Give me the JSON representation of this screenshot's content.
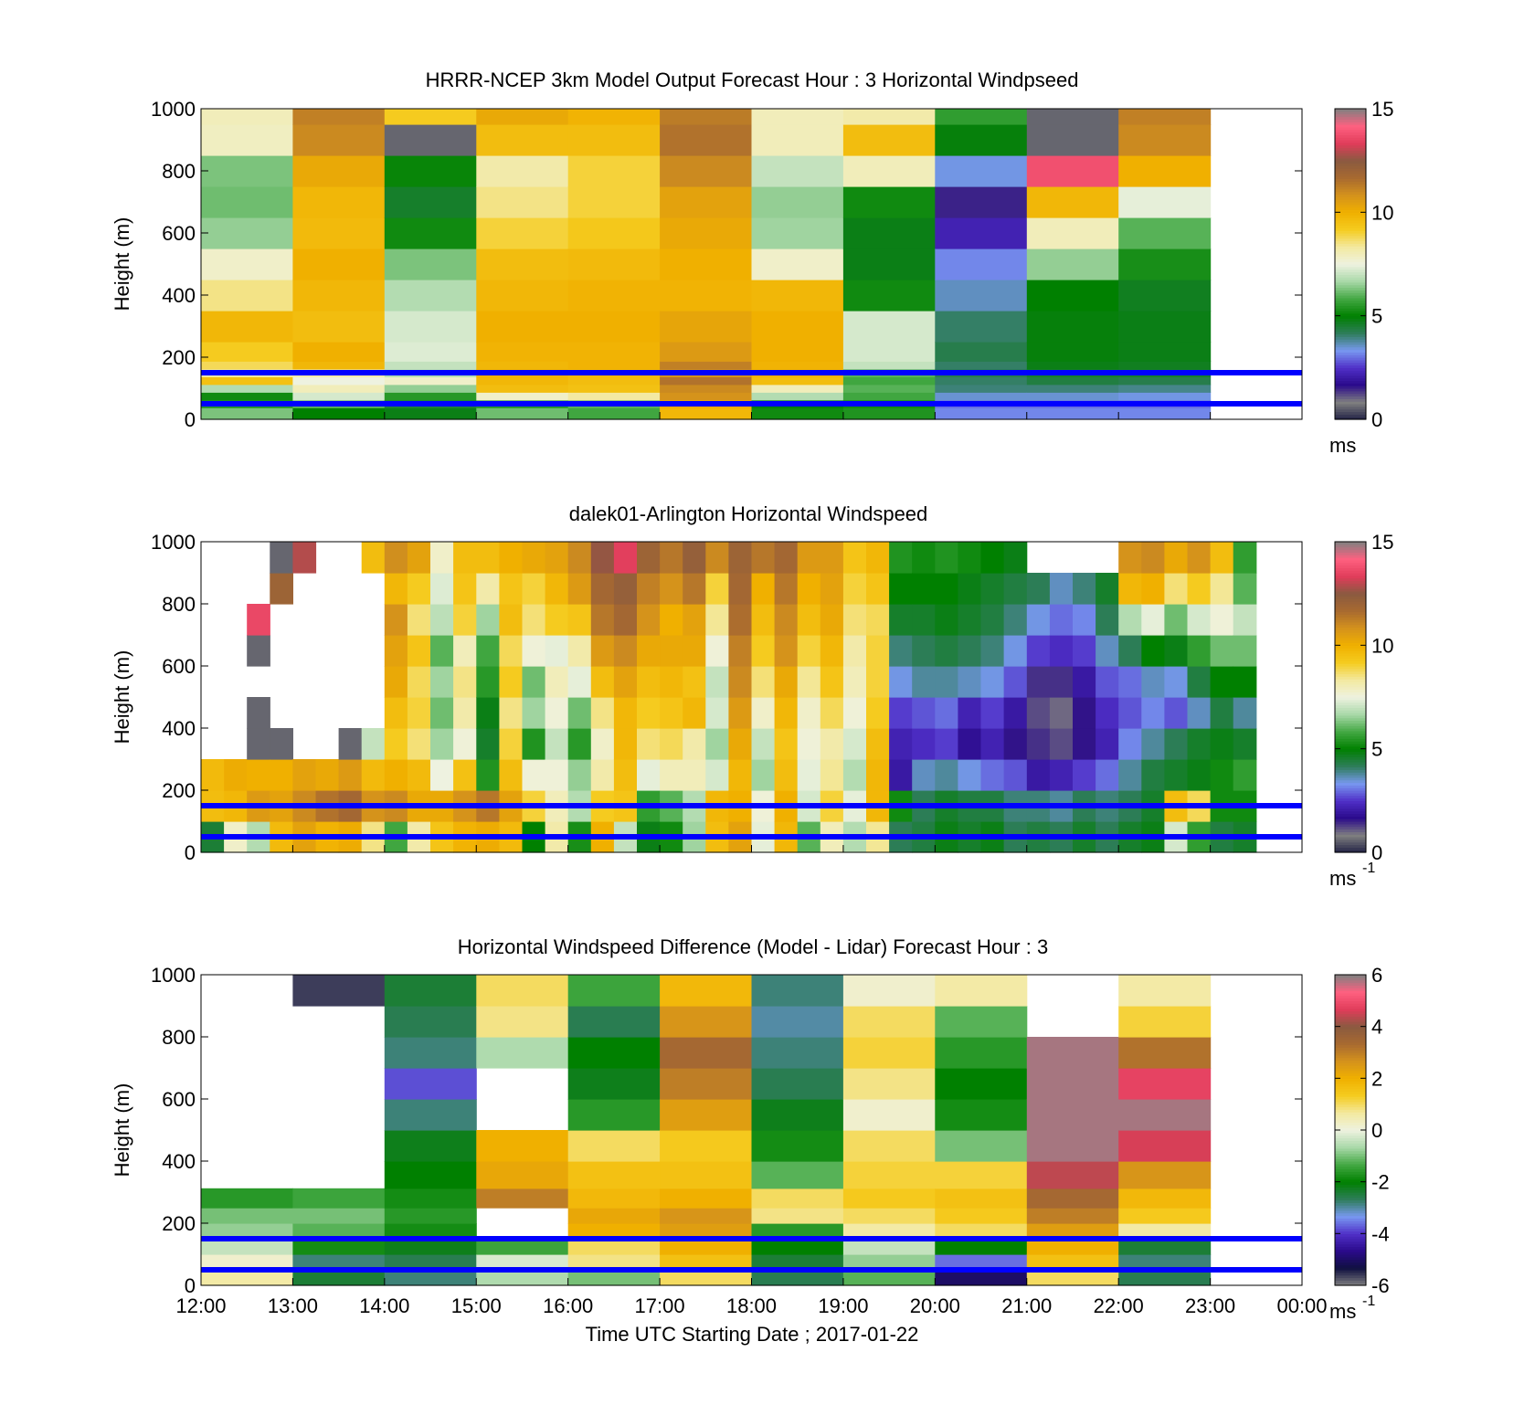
{
  "colors": {
    "ws_scale": [
      "#222244",
      "#808080",
      "#2a0a8a",
      "#5030c8",
      "#7898f0",
      "#2e7d5a",
      "#008000",
      "#43a843",
      "#a8d8a8",
      "#eef2e0",
      "#f3e9a0",
      "#f5cc20",
      "#f0b000",
      "#d4921c",
      "#a86a30",
      "#8a5a40",
      "#e03c5a",
      "#ff6080",
      "#808080"
    ],
    "diff_scale": [
      "#808080",
      "#101040",
      "#2a0a8a",
      "#5030c8",
      "#7898f0",
      "#2e7d5a",
      "#008000",
      "#43a843",
      "#a8d8a8",
      "#eef2e0",
      "#f3e9a0",
      "#f5cc20",
      "#f0b000",
      "#d4921c",
      "#a86a30",
      "#8a5a40",
      "#e03c5a",
      "#ff6080",
      "#808080"
    ],
    "marker_line": "#0000ff"
  },
  "chart_data": [
    {
      "type": "heatmap",
      "title": "HRRR-NCEP 3km Model Output   Forecast Hour : 3 Horizontal Windpseed",
      "ylabel": "Height (m)",
      "ylim": [
        0,
        1000
      ],
      "yticks": [
        "0",
        "200",
        "400",
        "600",
        "800",
        "1000"
      ],
      "xlim_hours": [
        12,
        24
      ],
      "colorbar": {
        "range": [
          0,
          15
        ],
        "ticks": [
          "0",
          "5",
          "10",
          "15"
        ],
        "unit": "ms",
        "exponent": ""
      },
      "reference_heights_m": [
        150,
        50
      ],
      "times_hour": [
        12,
        13,
        14,
        15,
        16,
        17,
        18,
        19,
        20,
        21,
        22
      ],
      "heights_m": [
        25,
        50,
        75,
        100,
        125,
        150,
        175,
        200,
        300,
        400,
        500,
        600,
        700,
        800,
        900,
        1000
      ],
      "values": [
        [
          6.3,
          5.5,
          5.2,
          6.8,
          9.5,
          8.2,
          8.8,
          9.2,
          9.8,
          8.5,
          7.8,
          6.5,
          6.2,
          6.3,
          7.9,
          8.0
        ],
        [
          5.0,
          6.0,
          7.2,
          8.0,
          7.5,
          8.2,
          9.8,
          10.0,
          9.6,
          9.8,
          10.0,
          9.7,
          9.8,
          10.2,
          11.0,
          11.2
        ],
        [
          4.8,
          4.5,
          5.5,
          6.5,
          7.8,
          6.8,
          7.0,
          7.3,
          7.2,
          6.8,
          6.3,
          5.2,
          4.6,
          5.1,
          0.6,
          9.2
        ],
        [
          6.2,
          5.5,
          7.8,
          9.6,
          9.8,
          10.0,
          9.8,
          9.9,
          10.0,
          9.8,
          9.6,
          9.0,
          8.5,
          8.2,
          9.6,
          10.2
        ],
        [
          5.8,
          6.0,
          8.3,
          9.5,
          9.6,
          9.8,
          9.9,
          9.9,
          10.0,
          9.9,
          9.7,
          9.3,
          9.0,
          9.0,
          9.6,
          9.9
        ],
        [
          9.8,
          10.2,
          10.8,
          11.0,
          11.5,
          10.8,
          11.2,
          10.6,
          10.3,
          9.9,
          10.0,
          10.2,
          10.4,
          11.0,
          11.5,
          11.3
        ],
        [
          5.2,
          5.0,
          6.8,
          8.0,
          9.6,
          10.0,
          9.9,
          10.0,
          10.0,
          9.8,
          7.8,
          6.6,
          6.5,
          7.0,
          8.0,
          8.0
        ],
        [
          5.4,
          5.2,
          5.8,
          6.0,
          5.8,
          6.0,
          7.0,
          7.2,
          7.2,
          5.2,
          4.8,
          4.8,
          5.2,
          8.0,
          9.6,
          8.2
        ],
        [
          3.2,
          3.0,
          3.5,
          4.0,
          4.1,
          4.3,
          4.1,
          4.3,
          4.1,
          3.6,
          3.2,
          2.2,
          1.5,
          3.4,
          4.9,
          5.6
        ],
        [
          3.2,
          3.0,
          3.5,
          4.0,
          4.4,
          4.6,
          4.8,
          4.9,
          4.9,
          5.0,
          6.5,
          8.0,
          9.8,
          13.8,
          0.6,
          0.6
        ],
        [
          3.2,
          3.0,
          3.4,
          3.9,
          4.3,
          4.6,
          4.7,
          4.8,
          4.8,
          4.7,
          5.3,
          6.0,
          7.4,
          10.0,
          11.0,
          11.2
        ]
      ]
    },
    {
      "type": "heatmap",
      "title": "dalek01-Arlington  Horizontal Windspeed",
      "ylabel": "Height (m)",
      "ylim": [
        0,
        1000
      ],
      "yticks": [
        "0",
        "200",
        "400",
        "600",
        "800",
        "1000"
      ],
      "xlim_hours": [
        12,
        24
      ],
      "colorbar": {
        "range": [
          0,
          15
        ],
        "ticks": [
          "0",
          "5",
          "10",
          "15"
        ],
        "unit": "ms",
        "exponent": "-1"
      },
      "reference_heights_m": [
        150,
        50
      ],
      "times_hour": [
        12.0,
        12.25,
        12.5,
        12.75,
        13.0,
        13.25,
        13.5,
        13.75,
        14.0,
        14.25,
        14.5,
        14.75,
        15.0,
        15.25,
        15.5,
        15.75,
        16.0,
        16.25,
        16.5,
        16.75,
        17.0,
        17.25,
        17.5,
        17.75,
        18.0,
        18.25,
        18.5,
        18.75,
        19.0,
        19.25,
        19.5,
        19.75,
        20.0,
        20.25,
        20.5,
        20.75,
        21.0,
        21.25,
        21.5,
        21.75,
        22.0,
        22.25,
        22.5,
        22.75,
        23.0,
        23.25
      ],
      "heights_m": [
        50,
        150,
        250,
        350,
        450,
        550,
        650,
        750,
        850,
        950
      ],
      "values": [
        [
          4.5,
          9.6,
          9.7,
          null,
          null,
          null,
          null,
          null,
          null,
          null
        ],
        [
          7.8,
          9.8,
          10.1,
          null,
          null,
          null,
          null,
          null,
          null,
          null
        ],
        [
          6.8,
          10.6,
          10.0,
          0.6,
          0.6,
          null,
          0.6,
          13.6,
          null,
          null
        ],
        [
          9.7,
          10.4,
          10.0,
          0.6,
          null,
          null,
          null,
          null,
          12.0,
          0.6
        ],
        [
          10.4,
          11.0,
          10.4,
          null,
          null,
          null,
          null,
          null,
          null,
          12.9
        ],
        [
          9.9,
          11.5,
          10.2,
          null,
          null,
          null,
          null,
          null,
          null,
          null
        ],
        [
          10.1,
          11.8,
          10.6,
          0.6,
          null,
          null,
          null,
          null,
          null,
          null
        ],
        [
          8.5,
          10.8,
          9.7,
          7.0,
          null,
          null,
          null,
          null,
          null,
          9.6
        ],
        [
          5.8,
          11.0,
          10.0,
          9.2,
          9.6,
          10.2,
          10.4,
          10.8,
          9.8,
          10.9
        ],
        [
          8.2,
          10.2,
          9.7,
          8.6,
          9.0,
          8.8,
          9.4,
          8.6,
          9.2,
          10.4
        ],
        [
          9.4,
          10.2,
          7.5,
          6.6,
          6.2,
          6.6,
          6.0,
          6.9,
          7.3,
          7.8
        ],
        [
          9.9,
          10.8,
          9.5,
          7.6,
          8.2,
          8.5,
          8.0,
          9.0,
          9.4,
          9.6
        ],
        [
          10.1,
          11.4,
          5.4,
          4.6,
          4.8,
          5.5,
          5.8,
          6.6,
          8.2,
          9.6
        ],
        [
          9.7,
          10.4,
          9.6,
          9.0,
          8.5,
          9.2,
          8.8,
          9.6,
          9.4,
          10.0
        ],
        [
          5.0,
          9.0,
          7.6,
          5.4,
          6.6,
          6.2,
          7.6,
          8.6,
          9.0,
          10.2
        ],
        [
          8.2,
          8.0,
          7.6,
          7.0,
          7.6,
          8.0,
          7.4,
          9.2,
          9.8,
          10.4
        ],
        [
          5.3,
          6.8,
          6.5,
          5.5,
          6.2,
          7.4,
          8.2,
          9.4,
          10.6,
          11.0
        ],
        [
          10.0,
          9.2,
          8.2,
          7.8,
          8.5,
          9.6,
          10.6,
          11.4,
          11.8,
          12.6
        ],
        [
          7.0,
          9.4,
          9.6,
          9.8,
          9.8,
          10.4,
          11.0,
          11.8,
          12.2,
          13.4
        ],
        [
          4.8,
          5.6,
          7.4,
          8.6,
          9.2,
          9.6,
          10.2,
          10.8,
          11.2,
          12.0
        ],
        [
          5.2,
          6.0,
          8.0,
          8.8,
          9.4,
          9.8,
          10.2,
          10.0,
          10.8,
          11.4
        ],
        [
          6.6,
          6.8,
          8.0,
          8.2,
          9.8,
          9.5,
          10.2,
          10.4,
          11.4,
          12.2
        ],
        [
          9.6,
          9.8,
          7.2,
          6.6,
          7.2,
          7.0,
          7.6,
          8.4,
          9.0,
          11.0
        ],
        [
          10.4,
          10.0,
          9.8,
          10.2,
          10.6,
          11.0,
          11.2,
          11.6,
          11.8,
          12.0
        ],
        [
          7.4,
          7.6,
          6.6,
          7.0,
          7.8,
          8.6,
          9.2,
          9.6,
          10.0,
          11.4
        ],
        [
          9.8,
          10.0,
          9.6,
          9.4,
          9.8,
          10.2,
          10.8,
          11.0,
          11.4,
          11.8
        ],
        [
          6.0,
          7.2,
          7.4,
          7.6,
          7.8,
          8.4,
          9.0,
          9.6,
          10.0,
          10.6
        ],
        [
          8.0,
          9.0,
          8.4,
          8.2,
          8.8,
          9.4,
          9.8,
          10.2,
          10.4,
          10.6
        ],
        [
          6.8,
          7.4,
          6.8,
          7.2,
          7.6,
          8.0,
          8.2,
          8.6,
          9.0,
          9.4
        ],
        [
          8.4,
          9.8,
          9.8,
          9.6,
          9.2,
          9.0,
          9.0,
          8.8,
          9.4,
          9.8
        ],
        [
          4.2,
          5.2,
          2.0,
          2.2,
          2.6,
          3.4,
          4.0,
          4.6,
          5.0,
          5.4
        ],
        [
          4.4,
          4.2,
          3.6,
          2.4,
          2.8,
          3.8,
          4.2,
          4.6,
          5.0,
          5.2
        ],
        [
          4.8,
          4.6,
          3.8,
          2.6,
          3.0,
          3.8,
          4.4,
          4.8,
          5.0,
          5.4
        ],
        [
          4.6,
          4.4,
          3.4,
          1.8,
          2.2,
          3.6,
          4.2,
          4.6,
          4.8,
          5.2
        ],
        [
          4.8,
          4.4,
          3.0,
          2.2,
          2.6,
          3.4,
          4.0,
          4.4,
          4.6,
          5.0
        ],
        [
          4.2,
          4.0,
          2.8,
          1.6,
          2.0,
          2.8,
          3.4,
          4.0,
          4.4,
          4.8
        ],
        [
          4.4,
          4.0,
          2.0,
          1.4,
          1.2,
          1.4,
          2.6,
          3.4,
          4.2,
          null
        ],
        [
          4.2,
          3.8,
          2.2,
          1.2,
          1.0,
          1.4,
          2.4,
          3.0,
          3.6,
          null
        ],
        [
          4.6,
          4.2,
          2.6,
          1.6,
          1.6,
          2.0,
          2.6,
          3.2,
          4.0,
          null
        ],
        [
          4.2,
          4.0,
          3.0,
          2.2,
          2.4,
          2.8,
          3.6,
          4.2,
          4.6,
          null
        ],
        [
          4.6,
          4.2,
          3.8,
          3.2,
          2.8,
          3.0,
          4.2,
          6.8,
          9.8,
          10.8
        ],
        [
          4.8,
          4.6,
          4.4,
          3.8,
          3.2,
          3.6,
          5.0,
          7.4,
          10.0,
          11.0
        ],
        [
          7.2,
          9.6,
          4.6,
          4.2,
          2.8,
          3.4,
          4.8,
          6.2,
          8.6,
          10.2
        ],
        [
          5.6,
          8.8,
          4.8,
          4.6,
          3.6,
          4.4,
          5.6,
          7.2,
          9.2,
          10.8
        ],
        [
          4.4,
          5.2,
          5.2,
          4.8,
          4.4,
          5.0,
          6.2,
          7.6,
          8.4,
          9.6
        ],
        [
          4.6,
          5.2,
          5.6,
          4.6,
          3.8,
          5.0,
          6.2,
          7.0,
          6.0,
          5.6
        ]
      ]
    },
    {
      "type": "heatmap",
      "title": "Horizontal Windspeed Difference (Model - Lidar) Forecast Hour : 3",
      "ylabel": "Height (m)",
      "xlabel": "Time UTC  Starting Date ; 2017-01-22",
      "ylim": [
        0,
        1000
      ],
      "yticks": [
        "0",
        "200",
        "400",
        "600",
        "800",
        "1000"
      ],
      "xticks": [
        "12:00",
        "13:00",
        "14:00",
        "15:00",
        "16:00",
        "17:00",
        "18:00",
        "19:00",
        "20:00",
        "21:00",
        "22:00",
        "23:00",
        "00:00"
      ],
      "xlim_hours": [
        12,
        24
      ],
      "colorbar": {
        "range": [
          -6,
          6
        ],
        "ticks": [
          "-6",
          "-4",
          "-2",
          "0",
          "2",
          "4",
          "6"
        ],
        "unit": "ms",
        "exponent": "-1"
      },
      "reference_heights_m": [
        150,
        50
      ],
      "times_hour": [
        12,
        13,
        14,
        15,
        16,
        17,
        18,
        19,
        20,
        21,
        22
      ],
      "heights_m": [
        25,
        75,
        125,
        175,
        225,
        275,
        350,
        450,
        550,
        650,
        750,
        850,
        950
      ],
      "values": [
        [
          0.6,
          0.2,
          -0.4,
          -0.8,
          -1.0,
          -1.6,
          null,
          null,
          null,
          null,
          null,
          null,
          null
        ],
        [
          -2.4,
          -2.8,
          -1.8,
          -1.2,
          -1.0,
          -1.4,
          null,
          null,
          null,
          null,
          null,
          null,
          -5.6
        ],
        [
          -2.8,
          -2.6,
          -2.2,
          -1.8,
          -1.6,
          -1.8,
          -2.0,
          -2.2,
          -2.8,
          -3.8,
          -2.8,
          -2.6,
          -2.4
        ],
        [
          -0.6,
          -0.2,
          -1.4,
          null,
          null,
          3.0,
          2.2,
          2.0,
          null,
          null,
          -0.6,
          0.8,
          1.0
        ],
        [
          -1.0,
          0.8,
          1.0,
          2.0,
          2.2,
          1.8,
          1.6,
          1.0,
          -1.6,
          -2.2,
          -2.0,
          -2.6,
          -1.4
        ],
        [
          1.0,
          1.6,
          2.0,
          2.4,
          2.6,
          2.0,
          1.6,
          1.4,
          2.4,
          3.0,
          3.4,
          2.6,
          1.8
        ],
        [
          -2.6,
          -2.4,
          -2.0,
          -1.6,
          0.8,
          1.0,
          -1.2,
          -1.8,
          -2.2,
          -2.6,
          -2.8,
          -3.0,
          -2.8
        ],
        [
          -1.2,
          -0.8,
          -0.4,
          0.6,
          1.0,
          1.4,
          1.2,
          1.0,
          0.2,
          0.8,
          1.2,
          1.0,
          0.2
        ],
        [
          -5.0,
          -3.6,
          -2.0,
          1.0,
          1.4,
          1.6,
          1.2,
          -1.0,
          -1.8,
          -2.0,
          -1.6,
          -1.2,
          0.6
        ],
        [
          1.0,
          1.6,
          2.0,
          2.4,
          3.0,
          3.4,
          4.4,
          5.8,
          5.8,
          5.8,
          5.8,
          null,
          null
        ],
        [
          -2.6,
          -2.8,
          -2.4,
          0.6,
          1.4,
          1.8,
          2.6,
          4.6,
          5.8,
          4.8,
          3.2,
          1.2,
          0.6
        ]
      ]
    }
  ]
}
